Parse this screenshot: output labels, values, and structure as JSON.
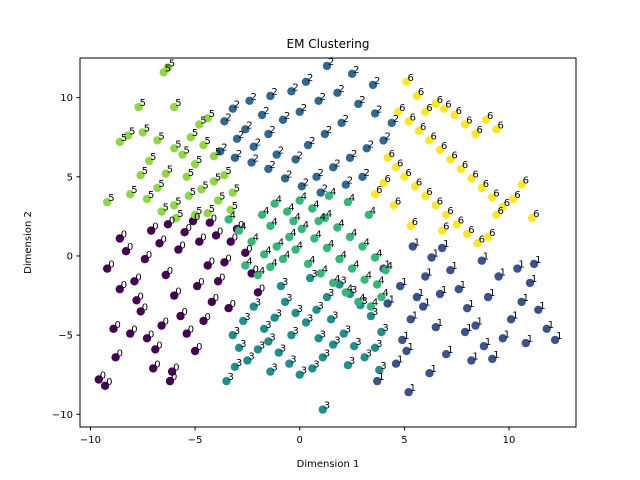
{
  "chart_data": {
    "type": "scatter",
    "title": "EM Clustering",
    "xlabel": "Dimension 1",
    "ylabel": "Dimension 2",
    "xlim": [
      -10.5,
      13.2
    ],
    "ylim": [
      -10.8,
      12.5
    ],
    "xticks": [
      -10,
      -5,
      0,
      5,
      10
    ],
    "yticks": [
      -10,
      -5,
      0,
      5,
      10
    ],
    "grid": false,
    "legend": "none",
    "series": [
      {
        "cluster": "0",
        "color": "#440154",
        "points": [
          [
            -9.6,
            -7.8
          ],
          [
            -9.3,
            -8.2
          ],
          [
            -8.8,
            -6.4
          ],
          [
            -8.9,
            -4.6
          ],
          [
            -8.6,
            -2.1
          ],
          [
            -9.2,
            -0.8
          ],
          [
            -8.3,
            0.3
          ],
          [
            -8.6,
            1.1
          ],
          [
            -7.9,
            -1.6
          ],
          [
            -7.6,
            -3.5
          ],
          [
            -7.3,
            -5.2
          ],
          [
            -7.0,
            -7.1
          ],
          [
            -6.1,
            -7.3
          ],
          [
            -6.2,
            -7.9
          ],
          [
            -7.4,
            -0.2
          ],
          [
            -7.1,
            1.6
          ],
          [
            -6.7,
            0.8
          ],
          [
            -6.4,
            -1.2
          ],
          [
            -6.0,
            -2.5
          ],
          [
            -5.7,
            -3.8
          ],
          [
            -5.4,
            -4.9
          ],
          [
            -5.0,
            -6.0
          ],
          [
            -4.6,
            -4.1
          ],
          [
            -4.2,
            -2.9
          ],
          [
            -3.9,
            -1.6
          ],
          [
            -3.6,
            -0.4
          ],
          [
            -3.3,
            0.9
          ],
          [
            -3.0,
            1.7
          ],
          [
            -2.6,
            0.2
          ],
          [
            -2.3,
            -1.1
          ],
          [
            -2.0,
            -2.3
          ],
          [
            -5.8,
            0.4
          ],
          [
            -5.5,
            1.5
          ],
          [
            -5.1,
            2.2
          ],
          [
            -4.8,
            0.9
          ],
          [
            -4.4,
            -0.6
          ],
          [
            -4.0,
            1.3
          ],
          [
            -6.6,
            -4.4
          ],
          [
            -7.8,
            -2.8
          ],
          [
            -6.9,
            -5.9
          ],
          [
            -4.9,
            -1.9
          ],
          [
            -3.4,
            -3.3
          ],
          [
            -8.1,
            -4.9
          ],
          [
            -6.3,
            2.0
          ],
          [
            -4.3,
            2.1
          ]
        ]
      },
      {
        "cluster": "1",
        "color": "#3b528b",
        "points": [
          [
            3.7,
            -7.9
          ],
          [
            5.2,
            -8.6
          ],
          [
            4.6,
            -6.8
          ],
          [
            4.9,
            -5.3
          ],
          [
            5.3,
            -4.0
          ],
          [
            5.6,
            -2.6
          ],
          [
            6.0,
            -1.3
          ],
          [
            6.3,
            -0.1
          ],
          [
            6.8,
            0.5
          ],
          [
            7.2,
            -0.9
          ],
          [
            7.6,
            -2.1
          ],
          [
            8.0,
            -3.3
          ],
          [
            8.4,
            -4.4
          ],
          [
            8.8,
            -5.7
          ],
          [
            9.2,
            -6.5
          ],
          [
            9.7,
            -5.2
          ],
          [
            10.1,
            -4.0
          ],
          [
            10.6,
            -2.9
          ],
          [
            11.0,
            -1.7
          ],
          [
            11.4,
            -3.4
          ],
          [
            11.8,
            -4.6
          ],
          [
            12.2,
            -5.3
          ],
          [
            10.4,
            -0.8
          ],
          [
            9.5,
            -1.3
          ],
          [
            8.7,
            -0.3
          ],
          [
            7.9,
            -4.8
          ],
          [
            7.0,
            -6.2
          ],
          [
            6.5,
            -4.5
          ],
          [
            5.9,
            -3.2
          ],
          [
            4.8,
            -1.9
          ],
          [
            4.2,
            -3.0
          ],
          [
            4.0,
            -0.8
          ],
          [
            5.4,
            0.6
          ],
          [
            6.7,
            -2.4
          ],
          [
            9.0,
            -2.6
          ],
          [
            10.8,
            -5.5
          ],
          [
            8.2,
            -6.6
          ],
          [
            6.2,
            -7.4
          ],
          [
            5.1,
            -6.0
          ],
          [
            11.2,
            -0.5
          ]
        ]
      },
      {
        "cluster": "2",
        "color": "#31688e",
        "points": [
          [
            1.3,
            12.0
          ],
          [
            2.5,
            11.5
          ],
          [
            3.5,
            10.8
          ],
          [
            0.3,
            11.0
          ],
          [
            -0.4,
            10.4
          ],
          [
            -1.4,
            10.1
          ],
          [
            -2.4,
            9.8
          ],
          [
            -3.2,
            9.3
          ],
          [
            -3.6,
            8.5
          ],
          [
            -3.0,
            7.4
          ],
          [
            -2.2,
            6.9
          ],
          [
            -1.5,
            7.7
          ],
          [
            -0.8,
            8.6
          ],
          [
            0.0,
            9.1
          ],
          [
            0.9,
            9.8
          ],
          [
            1.8,
            10.3
          ],
          [
            2.8,
            9.6
          ],
          [
            3.6,
            9.0
          ],
          [
            4.4,
            8.4
          ],
          [
            4.0,
            7.3
          ],
          [
            3.2,
            6.8
          ],
          [
            2.4,
            6.2
          ],
          [
            1.6,
            5.6
          ],
          [
            0.8,
            5.0
          ],
          [
            0.1,
            4.4
          ],
          [
            -0.7,
            4.9
          ],
          [
            -1.5,
            5.5
          ],
          [
            -2.3,
            5.9
          ],
          [
            -3.1,
            6.2
          ],
          [
            -3.8,
            6.6
          ],
          [
            -1.1,
            6.4
          ],
          [
            0.4,
            7.0
          ],
          [
            1.2,
            7.7
          ],
          [
            2.0,
            8.4
          ],
          [
            -2.6,
            8.0
          ],
          [
            3.0,
            5.0
          ],
          [
            2.2,
            4.5
          ],
          [
            1.0,
            4.0
          ],
          [
            -0.2,
            6.1
          ],
          [
            -1.8,
            8.9
          ]
        ]
      },
      {
        "cluster": "3",
        "color": "#21908d",
        "points": [
          [
            1.1,
            -9.7
          ],
          [
            -3.5,
            -7.9
          ],
          [
            -3.1,
            -7.0
          ],
          [
            -2.5,
            -6.6
          ],
          [
            -2.0,
            -5.9
          ],
          [
            -1.5,
            -5.4
          ],
          [
            -1.0,
            -6.1
          ],
          [
            -0.5,
            -6.8
          ],
          [
            0.0,
            -7.5
          ],
          [
            0.6,
            -7.1
          ],
          [
            1.1,
            -6.4
          ],
          [
            1.6,
            -5.6
          ],
          [
            2.1,
            -4.9
          ],
          [
            2.6,
            -5.7
          ],
          [
            3.1,
            -6.4
          ],
          [
            3.6,
            -5.8
          ],
          [
            3.9,
            -4.8
          ],
          [
            3.4,
            -3.8
          ],
          [
            2.9,
            -3.1
          ],
          [
            2.4,
            -2.4
          ],
          [
            1.9,
            -1.8
          ],
          [
            1.3,
            -2.6
          ],
          [
            0.8,
            -3.4
          ],
          [
            0.3,
            -4.2
          ],
          [
            -0.2,
            -3.6
          ],
          [
            -0.7,
            -2.9
          ],
          [
            -1.2,
            -3.9
          ],
          [
            -1.7,
            -4.6
          ],
          [
            -2.2,
            -3.2
          ],
          [
            -2.7,
            -4.1
          ],
          [
            -3.2,
            -5.0
          ],
          [
            -0.4,
            -5.0
          ],
          [
            0.9,
            -5.2
          ],
          [
            2.3,
            -6.9
          ],
          [
            3.8,
            -7.2
          ],
          [
            -1.4,
            -7.3
          ],
          [
            -2.9,
            -5.8
          ],
          [
            1.5,
            -4.0
          ],
          [
            -0.9,
            -1.9
          ],
          [
            0.5,
            -1.4
          ]
        ]
      },
      {
        "cluster": "4",
        "color": "#35b779",
        "points": [
          [
            -1.8,
            2.6
          ],
          [
            -1.2,
            3.3
          ],
          [
            -0.6,
            2.8
          ],
          [
            0.0,
            3.5
          ],
          [
            0.6,
            3.0
          ],
          [
            1.2,
            2.4
          ],
          [
            1.8,
            1.8
          ],
          [
            2.4,
            1.2
          ],
          [
            3.0,
            0.6
          ],
          [
            3.6,
            -0.1
          ],
          [
            4.1,
            -0.9
          ],
          [
            3.7,
            -1.8
          ],
          [
            3.1,
            -1.5
          ],
          [
            2.5,
            -0.8
          ],
          [
            1.9,
            -0.2
          ],
          [
            1.3,
            0.5
          ],
          [
            0.7,
            1.1
          ],
          [
            0.1,
            1.7
          ],
          [
            -0.5,
            1.2
          ],
          [
            -1.1,
            0.6
          ],
          [
            -1.7,
            0.1
          ],
          [
            -2.3,
            0.9
          ],
          [
            -2.9,
            1.6
          ],
          [
            -3.4,
            2.3
          ],
          [
            -2.6,
            -0.6
          ],
          [
            -2.0,
            -1.2
          ],
          [
            -1.4,
            -0.7
          ],
          [
            -0.8,
            -0.2
          ],
          [
            -0.2,
            0.4
          ],
          [
            0.4,
            -0.5
          ],
          [
            1.0,
            -1.1
          ],
          [
            1.6,
            -1.7
          ],
          [
            2.2,
            -2.3
          ],
          [
            2.8,
            -2.9
          ],
          [
            3.4,
            -3.2
          ],
          [
            3.9,
            -2.6
          ],
          [
            1.4,
            3.8
          ],
          [
            2.3,
            3.4
          ],
          [
            3.3,
            2.6
          ],
          [
            0.9,
            2.2
          ],
          [
            -0.3,
            2.2
          ],
          [
            -1.4,
            1.9
          ]
        ]
      },
      {
        "cluster": "5",
        "color": "#8fd744",
        "points": [
          [
            -6.5,
            11.6
          ],
          [
            -6.3,
            11.9
          ],
          [
            -7.7,
            9.4
          ],
          [
            -6.0,
            9.4
          ],
          [
            -8.2,
            7.6
          ],
          [
            -8.6,
            7.2
          ],
          [
            -7.2,
            6.0
          ],
          [
            -7.6,
            5.1
          ],
          [
            -6.4,
            5.2
          ],
          [
            -6.0,
            6.8
          ],
          [
            -5.6,
            6.4
          ],
          [
            -5.2,
            7.5
          ],
          [
            -4.8,
            8.3
          ],
          [
            -4.4,
            8.7
          ],
          [
            -4.6,
            7.0
          ],
          [
            -5.0,
            5.8
          ],
          [
            -5.4,
            5.0
          ],
          [
            -6.8,
            4.3
          ],
          [
            -7.3,
            3.6
          ],
          [
            -8.1,
            3.9
          ],
          [
            -9.2,
            3.4
          ],
          [
            -6.0,
            3.2
          ],
          [
            -5.3,
            3.8
          ],
          [
            -4.7,
            4.2
          ],
          [
            -4.1,
            4.7
          ],
          [
            -3.6,
            5.1
          ],
          [
            -3.2,
            4.0
          ],
          [
            -3.9,
            3.5
          ],
          [
            -4.4,
            2.7
          ],
          [
            -5.0,
            2.6
          ],
          [
            -5.9,
            2.4
          ],
          [
            -6.6,
            2.8
          ],
          [
            -7.5,
            7.8
          ],
          [
            -6.8,
            7.3
          ],
          [
            -4.1,
            6.3
          ],
          [
            -3.3,
            2.9
          ]
        ]
      },
      {
        "cluster": "6",
        "color": "#fde725",
        "points": [
          [
            5.1,
            11.0
          ],
          [
            5.6,
            10.1
          ],
          [
            6.0,
            9.1
          ],
          [
            6.5,
            9.6
          ],
          [
            6.9,
            9.3
          ],
          [
            7.4,
            8.9
          ],
          [
            7.9,
            8.3
          ],
          [
            8.4,
            7.7
          ],
          [
            8.9,
            8.6
          ],
          [
            9.4,
            8.0
          ],
          [
            4.7,
            9.1
          ],
          [
            5.2,
            8.5
          ],
          [
            5.7,
            7.9
          ],
          [
            6.2,
            7.3
          ],
          [
            6.7,
            6.7
          ],
          [
            7.2,
            6.1
          ],
          [
            7.7,
            5.5
          ],
          [
            8.2,
            4.9
          ],
          [
            8.7,
            4.3
          ],
          [
            9.2,
            3.7
          ],
          [
            9.7,
            3.1
          ],
          [
            10.2,
            3.6
          ],
          [
            10.6,
            4.5
          ],
          [
            11.1,
            2.4
          ],
          [
            4.2,
            6.2
          ],
          [
            4.6,
            5.6
          ],
          [
            5.0,
            5.0
          ],
          [
            5.5,
            4.4
          ],
          [
            6.0,
            3.8
          ],
          [
            6.5,
            3.2
          ],
          [
            7.0,
            2.6
          ],
          [
            7.5,
            2.0
          ],
          [
            8.0,
            1.4
          ],
          [
            8.5,
            0.8
          ],
          [
            9.0,
            1.2
          ],
          [
            4.0,
            4.6
          ],
          [
            4.5,
            3.2
          ],
          [
            5.3,
            1.9
          ],
          [
            6.8,
            1.6
          ],
          [
            9.4,
            2.6
          ],
          [
            3.6,
            3.9
          ]
        ]
      }
    ]
  }
}
